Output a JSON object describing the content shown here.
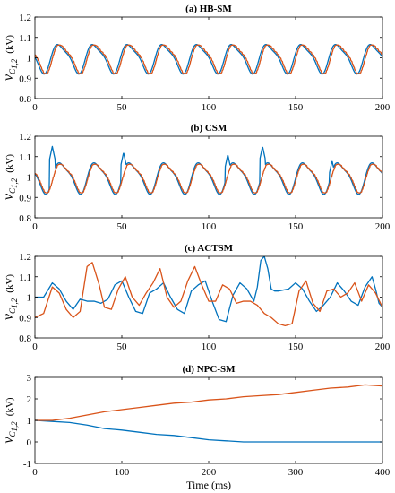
{
  "chart_data": [
    {
      "type": "line",
      "title": "(a) HB-SM",
      "ylabel": "v_C1,2 (kV)",
      "xlim": [
        0,
        200
      ],
      "ylim": [
        0.8,
        1.2
      ],
      "xticks": [
        0,
        50,
        100,
        150,
        200
      ],
      "yticks": [
        0.8,
        0.9,
        1,
        1.1,
        1.2
      ],
      "ytick_labels": [
        "0.8",
        "0.9",
        "1",
        "1.1",
        "1.2"
      ],
      "grid": false,
      "series": [
        {
          "color": "#0072BD",
          "kind": "periodic",
          "period": 20,
          "phase": 9.5,
          "center": 1.0,
          "amp": 0.075,
          "steps": 0
        },
        {
          "color": "#D95319",
          "kind": "periodic",
          "period": 20,
          "phase": 10.5,
          "center": 1.0,
          "amp": 0.075,
          "steps": 1
        }
      ]
    },
    {
      "type": "line",
      "title": "(b) CSM",
      "ylabel": "v_C1,2 (kV)",
      "xlim": [
        0,
        200
      ],
      "ylim": [
        0.8,
        1.2
      ],
      "xticks": [
        0,
        50,
        100,
        150,
        200
      ],
      "yticks": [
        0.8,
        0.9,
        1,
        1.1,
        1.2
      ],
      "ytick_labels": [
        "0.8",
        "0.9",
        "1",
        "1.1",
        "1.2"
      ],
      "grid": false,
      "series": [
        {
          "color": "#0072BD",
          "kind": "periodic",
          "period": 20,
          "phase": 10.5,
          "center": 1.0,
          "amp": 0.08,
          "steps": 0,
          "spikes": [
            [
              10,
              1.15
            ],
            [
              51,
              1.12
            ],
            [
              111,
              1.11
            ],
            [
              131,
              1.15
            ],
            [
              171,
              1.08
            ]
          ]
        },
        {
          "color": "#D95319",
          "kind": "periodic",
          "period": 20,
          "phase": 11,
          "center": 1.0,
          "amp": 0.075,
          "steps": 1
        }
      ]
    },
    {
      "type": "line",
      "title": "(c) ACTSM",
      "ylabel": "v_C1,2 (kV)",
      "xlim": [
        0,
        200
      ],
      "ylim": [
        0.8,
        1.2
      ],
      "xticks": [
        0,
        50,
        100,
        150,
        200
      ],
      "yticks": [
        0.8,
        0.9,
        1,
        1.1,
        1.2
      ],
      "ytick_labels": [
        "0.8",
        "0.9",
        "1",
        "1.1",
        "1.2"
      ],
      "grid": false,
      "series": [
        {
          "color": "#0072BD",
          "kind": "points",
          "x": [
            0,
            5,
            10,
            14,
            18,
            22,
            26,
            30,
            34,
            38,
            42,
            46,
            50,
            54,
            58,
            62,
            66,
            70,
            74,
            78,
            82,
            86,
            90,
            94,
            98,
            102,
            106,
            110,
            114,
            118,
            122,
            126,
            128,
            130,
            132,
            134,
            136,
            138,
            140,
            146,
            150,
            154,
            158,
            162,
            166,
            170,
            174,
            178,
            182,
            186,
            190,
            194,
            196,
            198,
            200
          ],
          "y": [
            1.0,
            1.0,
            1.07,
            1.04,
            0.98,
            0.94,
            0.99,
            0.98,
            0.98,
            0.97,
            0.99,
            1.06,
            1.08,
            1.0,
            0.93,
            0.92,
            1.02,
            1.04,
            1.07,
            1.0,
            0.94,
            0.92,
            1.03,
            1.06,
            1.08,
            0.98,
            0.89,
            0.88,
            1.01,
            1.07,
            1.04,
            0.98,
            1.05,
            1.18,
            1.2,
            1.14,
            1.04,
            1.03,
            1.03,
            1.04,
            1.07,
            1.04,
            0.98,
            0.93,
            0.96,
            1.0,
            1.07,
            1.03,
            0.98,
            0.96,
            1.05,
            1.1,
            1.04,
            0.97,
            0.95
          ]
        },
        {
          "color": "#D95319",
          "kind": "points",
          "x": [
            0,
            5,
            10,
            14,
            18,
            22,
            26,
            30,
            33,
            37,
            40,
            44,
            48,
            52,
            56,
            60,
            64,
            68,
            72,
            76,
            80,
            84,
            88,
            92,
            96,
            100,
            104,
            108,
            112,
            116,
            120,
            124,
            128,
            132,
            136,
            140,
            144,
            148,
            152,
            156,
            160,
            164,
            168,
            172,
            176,
            180,
            184,
            188,
            192,
            196,
            200
          ],
          "y": [
            0.9,
            0.92,
            1.05,
            1.02,
            0.94,
            0.9,
            0.93,
            1.15,
            1.17,
            1.06,
            0.95,
            0.94,
            1.04,
            1.1,
            1.0,
            0.96,
            1.02,
            1.07,
            1.14,
            1.0,
            0.95,
            0.98,
            1.08,
            1.15,
            1.06,
            0.98,
            0.98,
            1.06,
            1.04,
            0.97,
            0.98,
            0.98,
            0.96,
            0.92,
            0.9,
            0.87,
            0.86,
            0.87,
            1.03,
            1.08,
            0.97,
            0.93,
            1.03,
            1.04,
            1.0,
            1.02,
            1.07,
            0.98,
            1.06,
            1.02,
            0.95
          ]
        }
      ]
    },
    {
      "type": "line",
      "title": "(d) NPC-SM",
      "ylabel": "v_C1,2 (kV)",
      "xlabel": "Time (ms)",
      "xlim": [
        0,
        400
      ],
      "ylim": [
        -1,
        3
      ],
      "xticks": [
        0,
        100,
        200,
        300,
        400
      ],
      "yticks": [
        -1,
        0,
        1,
        2,
        3
      ],
      "ytick_labels": [
        "-1",
        "0",
        "1",
        "2",
        "3"
      ],
      "grid": false,
      "series": [
        {
          "color": "#0072BD",
          "kind": "points",
          "x": [
            0,
            20,
            40,
            60,
            80,
            100,
            120,
            140,
            160,
            180,
            200,
            220,
            240,
            260,
            280,
            300,
            320,
            340,
            360,
            380,
            400
          ],
          "y": [
            1.0,
            0.95,
            0.9,
            0.78,
            0.62,
            0.55,
            0.45,
            0.35,
            0.3,
            0.2,
            0.1,
            0.05,
            0.0,
            0.0,
            0.0,
            0.0,
            0.0,
            0.0,
            0.0,
            0.0,
            0.0
          ]
        },
        {
          "color": "#D95319",
          "kind": "points",
          "x": [
            0,
            20,
            40,
            60,
            80,
            100,
            120,
            140,
            160,
            180,
            200,
            220,
            240,
            260,
            280,
            300,
            320,
            340,
            360,
            380,
            400
          ],
          "y": [
            1.0,
            1.0,
            1.1,
            1.25,
            1.4,
            1.5,
            1.6,
            1.7,
            1.8,
            1.85,
            1.95,
            2.0,
            2.1,
            2.15,
            2.2,
            2.3,
            2.4,
            2.5,
            2.55,
            2.65,
            2.6
          ]
        }
      ]
    }
  ]
}
